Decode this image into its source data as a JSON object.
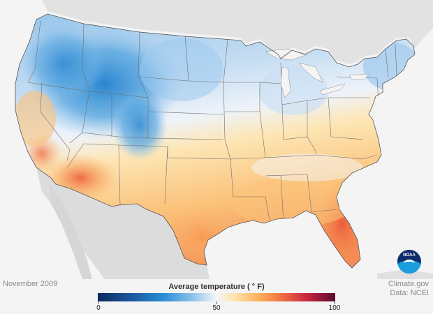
{
  "map": {
    "date": "November 2009",
    "legend": {
      "title": "Average temperature ( ° F)",
      "ticks": [
        {
          "value": 0,
          "label": "0"
        },
        {
          "value": 50,
          "label": "50"
        },
        {
          "value": 100,
          "label": "100"
        }
      ],
      "range": [
        0,
        100
      ],
      "colors": [
        "#0d2b5e",
        "#1b5aa3",
        "#2a8fd6",
        "#8fc3ea",
        "#f3f6fa",
        "#fde3a8",
        "#fbb05a",
        "#ef6b43",
        "#c8283f",
        "#5a0a2e"
      ]
    },
    "credit": {
      "source": "Climate.gov",
      "data": "Data: NCEI"
    },
    "logo_text": "NOAA",
    "colors": {
      "background": "#f4f4f4",
      "neighbor_land": "#d9d9d9",
      "ocean": "#f4f4f4",
      "cold": "#3f97d8",
      "neutral": "#f3f6fa",
      "warm": "#fbb05a",
      "hot": "#ef6b43"
    }
  }
}
